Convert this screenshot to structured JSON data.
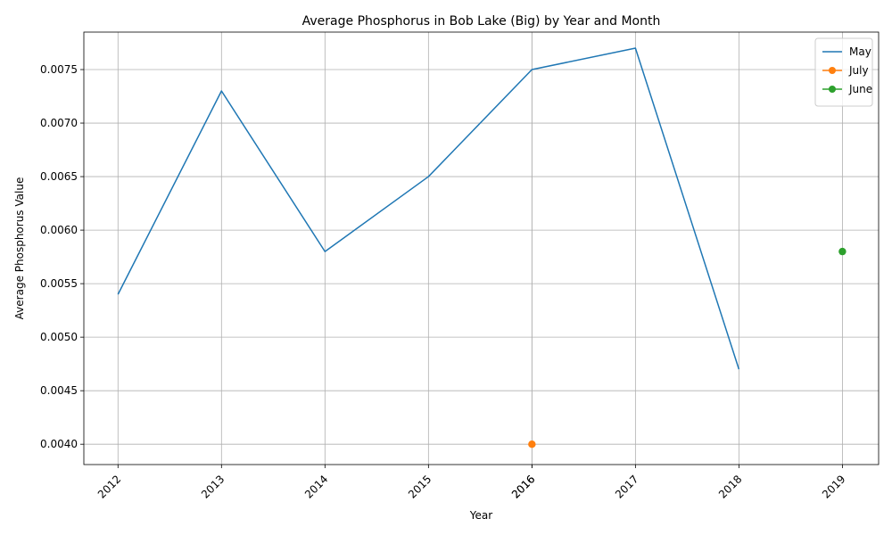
{
  "chart_data": {
    "type": "line",
    "title": "Average Phosphorus in Bob Lake (Big) by Year and Month",
    "xlabel": "Year",
    "ylabel": "Average Phosphorus Value",
    "xlim": [
      2011.67,
      2019.35
    ],
    "ylim": [
      0.00381,
      0.00785
    ],
    "grid": true,
    "legend_position": "top-right",
    "x_ticks": [
      "2012",
      "2013",
      "2014",
      "2015",
      "2016",
      "2016",
      "2017",
      "2018",
      "2019"
    ],
    "x_tick_values": [
      2012,
      2013,
      2014,
      2015,
      2016,
      2016,
      2017,
      2018,
      2019
    ],
    "y_ticks": [
      "0.0040",
      "0.0045",
      "0.0050",
      "0.0055",
      "0.0060",
      "0.0065",
      "0.0070",
      "0.0075"
    ],
    "y_tick_values": [
      0.004,
      0.0045,
      0.005,
      0.0055,
      0.006,
      0.0065,
      0.007,
      0.0075
    ],
    "series": [
      {
        "name": "May",
        "color": "#1f77b4",
        "markers": false,
        "x": [
          2012,
          2013,
          2014,
          2015,
          2016,
          2017,
          2018
        ],
        "y": [
          0.0054,
          0.0073,
          0.0058,
          0.0065,
          0.0075,
          0.0077,
          0.0047
        ]
      },
      {
        "name": "July",
        "color": "#ff7f0e",
        "markers": true,
        "x": [
          2016
        ],
        "y": [
          0.004
        ]
      },
      {
        "name": "June",
        "color": "#2ca02c",
        "markers": true,
        "x": [
          2019
        ],
        "y": [
          0.0058
        ]
      }
    ]
  }
}
